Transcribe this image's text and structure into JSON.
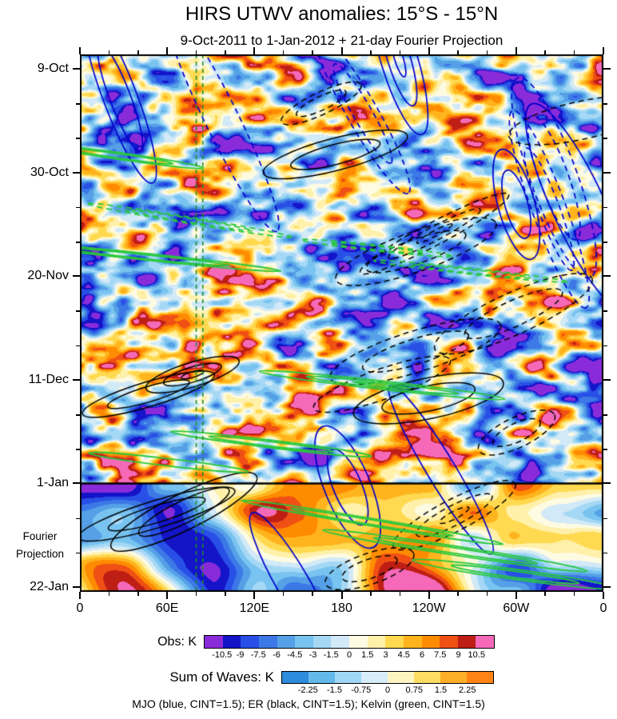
{
  "header": {
    "title": "HIRS UTWV anomalies: 15°S - 15°N",
    "subtitle": "9-Oct-2011 to 1-Jan-2012 + 21-day Fourier Projection"
  },
  "chart_data": {
    "type": "heatmap",
    "title": "HIRS UTWV anomalies: 15°S - 15°N",
    "subtitle": "9-Oct-2011 to 1-Jan-2012 + 21-day Fourier Projection",
    "x_axis": {
      "tick_labels": [
        "0",
        "60E",
        "120E",
        "180",
        "120W",
        "60W",
        "0"
      ],
      "domain_degrees": [
        0,
        360
      ],
      "minor_tick_step_degrees": 20
    },
    "y_axis": {
      "tick_labels": [
        "9-Oct",
        "30-Oct",
        "20-Nov",
        "11-Dec",
        "1-Jan",
        "22-Jan"
      ],
      "tick_step_days": 21,
      "minor_tick_step_days": 7,
      "orientation": "time increases downward"
    },
    "y_axis_note": "Fourier Projection",
    "divider": {
      "at": "1-Jan"
    },
    "obs_colorbar": {
      "label": "Obs: K",
      "levels": [
        -10.5,
        -9,
        -7.5,
        -6,
        -4.5,
        -3,
        -1.5,
        0,
        1.5,
        3,
        4.5,
        6,
        7.5,
        9,
        10.5
      ],
      "tick_labels": [
        "-10.5",
        "-9",
        "-7.5",
        "-6",
        "-4.5",
        "-3",
        "-1.5",
        "0",
        "1.5",
        "3",
        "4.5",
        "6",
        "7.5",
        "9",
        "10.5"
      ],
      "colors": [
        "#8A2BD9",
        "#1414C8",
        "#2850E6",
        "#3C78E6",
        "#55A0E6",
        "#78C3F0",
        "#A5D8F5",
        "#D2E9F7",
        "#FEFBE3",
        "#FFF0AA",
        "#FFD94F",
        "#FFB41E",
        "#FF8C00",
        "#F05014",
        "#BE1E14",
        "#F569B8"
      ]
    },
    "waves_colorbar": {
      "label": "Sum of Waves: K",
      "levels": [
        -2.25,
        -1.5,
        -0.75,
        0,
        0.75,
        1.5,
        2.25
      ],
      "tick_labels": [
        "-2.25",
        "-1.5",
        "-0.75",
        "0",
        "0.75",
        "1.5",
        "2.25"
      ],
      "colors": [
        "#2D8CDC",
        "#64B9EB",
        "#A0D7F5",
        "#D7EDFA",
        "#FFF5C3",
        "#FFDC64",
        "#FFAF28",
        "#FF8414"
      ]
    },
    "overlays": [
      {
        "name": "MJO",
        "color_name": "blue",
        "hex": "#0000CD",
        "cint": 1.5
      },
      {
        "name": "ER",
        "color_name": "black",
        "hex": "#000000",
        "cint": 1.5
      },
      {
        "name": "Kelvin",
        "color_name": "green",
        "hex": "#28C83C",
        "cint": 1.5
      }
    ],
    "reference_lines": {
      "style": "vertical dashed",
      "color": "#1E8C28",
      "longitudes_deg_east": [
        80,
        84.5
      ]
    },
    "footnote": "MJO (blue, CINT=1.5); ER (black, CINT=1.5); Kelvin (green, CINT=1.5)"
  }
}
